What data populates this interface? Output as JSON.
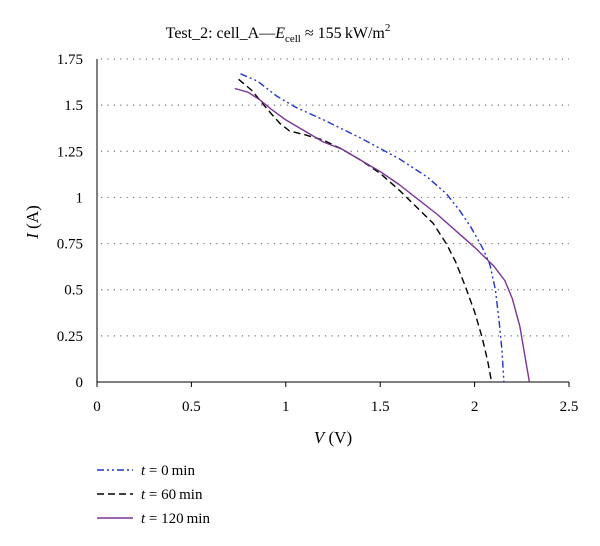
{
  "chart_data": {
    "type": "line",
    "title": {
      "prefix": "Test_2: cell_A—",
      "var": "E",
      "var_sub": "cell",
      "relation": " ≈ 155 kW/m",
      "sup": "2"
    },
    "xlabel": {
      "var": "V",
      "unit": " (V)"
    },
    "ylabel": {
      "var": "I",
      "unit": " (A)"
    },
    "xlim": [
      0,
      2.5
    ],
    "ylim": [
      0,
      1.75
    ],
    "x_ticks": [
      0,
      0.5,
      1,
      1.5,
      2,
      2.5
    ],
    "x_tick_labels": [
      "0",
      "0.5",
      "1",
      "1.5",
      "2",
      "2.5"
    ],
    "y_ticks": [
      0,
      0.25,
      0.5,
      0.75,
      1,
      1.25,
      1.5,
      1.75
    ],
    "y_tick_labels": [
      "0",
      "0.25",
      "0.5",
      "0.75",
      "1",
      "1.25",
      "1.5",
      "1.75"
    ],
    "grid": "horizontal-dotted",
    "legend_position": "bottom-left",
    "series": [
      {
        "name": "t = 0 min",
        "legend_var": "t",
        "legend_rest": " = 0 min",
        "color": "#2233cc",
        "dash": "7 3 2 3 2 3",
        "points": [
          [
            0.76,
            1.67
          ],
          [
            0.85,
            1.63
          ],
          [
            0.95,
            1.55
          ],
          [
            1.05,
            1.49
          ],
          [
            1.2,
            1.42
          ],
          [
            1.4,
            1.32
          ],
          [
            1.6,
            1.21
          ],
          [
            1.75,
            1.11
          ],
          [
            1.85,
            1.02
          ],
          [
            1.92,
            0.93
          ],
          [
            1.98,
            0.84
          ],
          [
            2.04,
            0.73
          ],
          [
            2.08,
            0.64
          ],
          [
            2.11,
            0.5
          ],
          [
            2.13,
            0.33
          ],
          [
            2.145,
            0.17
          ],
          [
            2.155,
            0
          ]
        ]
      },
      {
        "name": "t = 60 min",
        "legend_var": "t",
        "legend_rest": " = 60 min",
        "color": "#000000",
        "dash": "7 4",
        "points": [
          [
            0.75,
            1.64
          ],
          [
            0.82,
            1.58
          ],
          [
            0.9,
            1.48
          ],
          [
            0.97,
            1.4
          ],
          [
            1.02,
            1.36
          ],
          [
            1.1,
            1.34
          ],
          [
            1.2,
            1.31
          ],
          [
            1.3,
            1.26
          ],
          [
            1.4,
            1.2
          ],
          [
            1.5,
            1.13
          ],
          [
            1.6,
            1.04
          ],
          [
            1.7,
            0.94
          ],
          [
            1.78,
            0.86
          ],
          [
            1.85,
            0.75
          ],
          [
            1.9,
            0.65
          ],
          [
            1.95,
            0.52
          ],
          [
            2.0,
            0.38
          ],
          [
            2.04,
            0.24
          ],
          [
            2.07,
            0.11
          ],
          [
            2.09,
            0
          ]
        ]
      },
      {
        "name": "t = 120 min",
        "legend_var": "t",
        "legend_rest": " = 120 min",
        "color": "#7a3597",
        "dash": "",
        "points": [
          [
            0.73,
            1.59
          ],
          [
            0.8,
            1.57
          ],
          [
            0.86,
            1.53
          ],
          [
            0.92,
            1.48
          ],
          [
            1.0,
            1.42
          ],
          [
            1.1,
            1.36
          ],
          [
            1.2,
            1.3
          ],
          [
            1.3,
            1.26
          ],
          [
            1.4,
            1.2
          ],
          [
            1.5,
            1.14
          ],
          [
            1.6,
            1.07
          ],
          [
            1.7,
            0.99
          ],
          [
            1.8,
            0.91
          ],
          [
            1.9,
            0.82
          ],
          [
            2.0,
            0.73
          ],
          [
            2.1,
            0.63
          ],
          [
            2.16,
            0.55
          ],
          [
            2.2,
            0.45
          ],
          [
            2.24,
            0.3
          ],
          [
            2.27,
            0.12
          ],
          [
            2.29,
            0
          ]
        ]
      }
    ]
  }
}
